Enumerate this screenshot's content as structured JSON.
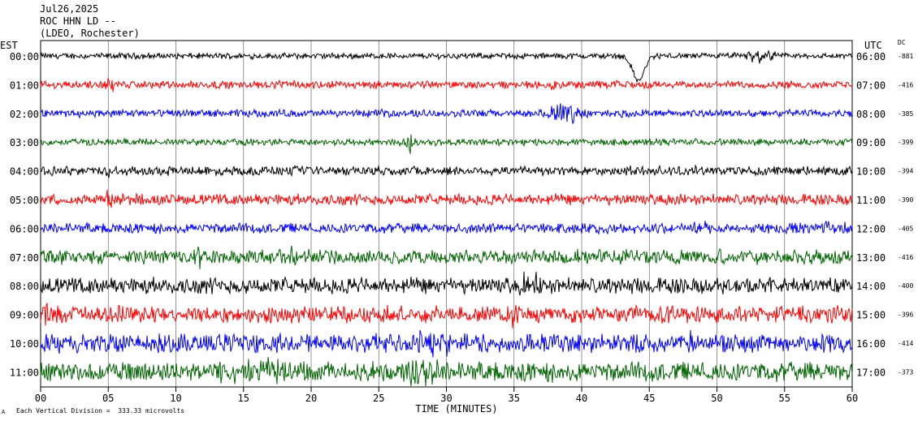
{
  "header": {
    "date": "Jul26,2025",
    "station": "ROC HHN LD --",
    "network": "(LDEO, Rochester)"
  },
  "labels": {
    "left_tz": "EST",
    "right_tz": "UTC",
    "dc": "DC",
    "scale_note": "Each Vertical Division =  333.33 microvolts",
    "corner_mark": "A"
  },
  "colors": {
    "trace_cycle": [
      "#000000",
      "#ff0000",
      "#0000ff",
      "#006400"
    ],
    "grid": "#000000"
  },
  "chart_data": {
    "type": "line",
    "xlabel": "TIME (MINUTES)",
    "xlim": [
      0,
      60
    ],
    "xticks": [
      "00",
      "05",
      "10",
      "15",
      "20",
      "25",
      "30",
      "35",
      "40",
      "45",
      "50",
      "55",
      "60"
    ],
    "rows": [
      {
        "est": "00:00",
        "utc": "06:00",
        "dc": "-881",
        "noise": 0.35,
        "events": [
          {
            "t": 44.2,
            "amp": -3.6,
            "w": 0.6
          },
          {
            "t": 53,
            "amp": -0.8,
            "w": 1.2
          }
        ]
      },
      {
        "est": "01:00",
        "utc": "07:00",
        "dc": "-416",
        "noise": 0.45,
        "events": [
          {
            "t": 5.2,
            "amp": -0.9,
            "w": 0.5
          },
          {
            "t": 38,
            "amp": -0.5,
            "w": 0.5
          }
        ]
      },
      {
        "est": "02:00",
        "utc": "08:00",
        "dc": "-385",
        "noise": 0.45,
        "events": [
          {
            "t": 38.8,
            "amp": 1.8,
            "w": 1.2
          }
        ]
      },
      {
        "est": "03:00",
        "utc": "09:00",
        "dc": "-399",
        "noise": 0.4,
        "events": [
          {
            "t": 27.3,
            "amp": 1.6,
            "w": 0.3
          }
        ]
      },
      {
        "est": "04:00",
        "utc": "10:00",
        "dc": "-394",
        "noise": 0.55,
        "events": [
          {
            "t": 5.2,
            "amp": 0.9,
            "w": 0.3
          }
        ]
      },
      {
        "est": "05:00",
        "utc": "11:00",
        "dc": "-390",
        "noise": 0.65,
        "events": [
          {
            "t": 5.0,
            "amp": 1.2,
            "w": 0.3
          }
        ]
      },
      {
        "est": "06:00",
        "utc": "12:00",
        "dc": "-405",
        "noise": 0.6,
        "events": [
          {
            "t": 48.8,
            "amp": 1.0,
            "w": 0.8
          },
          {
            "t": 58.5,
            "amp": -1.0,
            "w": 0.8
          }
        ]
      },
      {
        "est": "07:00",
        "utc": "13:00",
        "dc": "-416",
        "noise": 0.85,
        "events": [
          {
            "t": 11.5,
            "amp": 1.3,
            "w": 0.4
          },
          {
            "t": 18.5,
            "amp": 1.0,
            "w": 0.5
          }
        ]
      },
      {
        "est": "08:00",
        "utc": "14:00",
        "dc": "-400",
        "noise": 0.95,
        "events": [
          {
            "t": 36.0,
            "amp": 1.2,
            "w": 1.0
          }
        ]
      },
      {
        "est": "09:00",
        "utc": "15:00",
        "dc": "-396",
        "noise": 1.0,
        "events": [
          {
            "t": 0.5,
            "amp": -2.2,
            "w": 0.3
          },
          {
            "t": 35.0,
            "amp": 1.2,
            "w": 0.6
          }
        ]
      },
      {
        "est": "10:00",
        "utc": "16:00",
        "dc": "-414",
        "noise": 1.1,
        "events": [
          {
            "t": 28.5,
            "amp": 1.6,
            "w": 1.5
          },
          {
            "t": 48.0,
            "amp": 1.1,
            "w": 1.0
          }
        ]
      },
      {
        "est": "11:00",
        "utc": "17:00",
        "dc": "-373",
        "noise": 1.15,
        "events": [
          {
            "t": 16.0,
            "amp": 1.3,
            "w": 2.0
          },
          {
            "t": 28.0,
            "amp": 1.8,
            "w": 1.5
          }
        ]
      }
    ]
  }
}
